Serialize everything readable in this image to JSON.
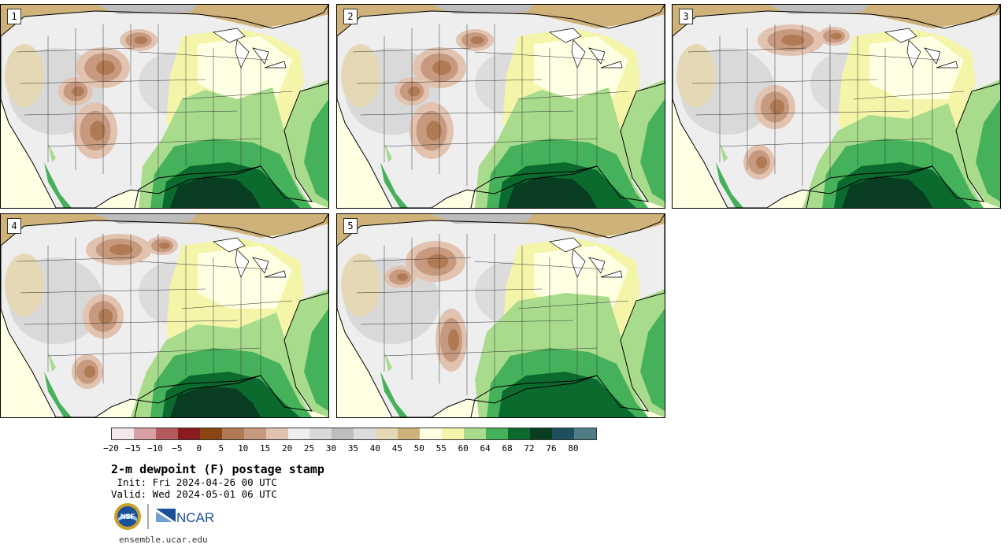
{
  "panels": [
    {
      "label": "1",
      "dry_center": "west",
      "gulf_depth": "deep"
    },
    {
      "label": "2",
      "dry_center": "west",
      "gulf_depth": "deep"
    },
    {
      "label": "3",
      "dry_center": "north",
      "gulf_depth": "deep"
    },
    {
      "label": "4",
      "dry_center": "north",
      "gulf_depth": "deep"
    },
    {
      "label": "5",
      "dry_center": "central",
      "gulf_depth": "medium"
    }
  ],
  "colorbar": {
    "colors": [
      "#f3e7e9",
      "#d6a0a5",
      "#b45a5f",
      "#8b1a1f",
      "#8b4513",
      "#b07a55",
      "#c79a80",
      "#e1c3b0",
      "#eeeeee",
      "#d9d9d9",
      "#bdbdbd",
      "#dcdcdc",
      "#e5d8b4",
      "#cfb27a",
      "#ffffe3",
      "#f5f5aa",
      "#a8dc8c",
      "#46b15b",
      "#0b6b2f",
      "#093d22",
      "#1d4f5e",
      "#4f7d85"
    ],
    "ticks": [
      "−20",
      "−15",
      "−10",
      "−5",
      "0",
      "5",
      "10",
      "15",
      "20",
      "25",
      "30",
      "35",
      "40",
      "45",
      "50",
      "55",
      "60",
      "64",
      "68",
      "72",
      "76",
      "80"
    ]
  },
  "title": "2-m dewpoint (F) postage stamp",
  "init": " Init: Fri 2024-04-26 00 UTC",
  "valid": "Valid: Wed 2024-05-01 06 UTC",
  "logos": {
    "nsf_icon": "nsf-logo",
    "nsf_text": "NSF",
    "ncar_icon": "ncar-logo",
    "ncar_text": "NCAR"
  },
  "website": "ensemble.ucar.edu"
}
